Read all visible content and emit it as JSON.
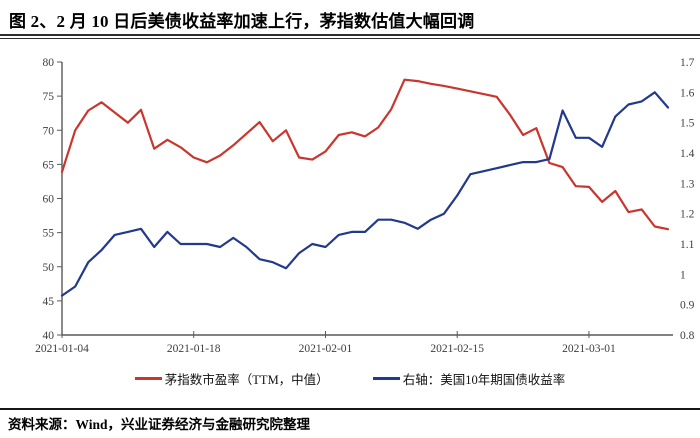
{
  "header": {
    "title": "图 2、2 月 10 日后美债收益率加速上行，茅指数估值大幅回调"
  },
  "chart_data": {
    "type": "line",
    "title": "图 2、2 月 10 日后美债收益率加速上行，茅指数估值大幅回调",
    "grid": false,
    "legend_position": "bottom",
    "x": [
      "2021-01-04",
      "2021-01-05",
      "2021-01-06",
      "2021-01-07",
      "2021-01-08",
      "2021-01-11",
      "2021-01-12",
      "2021-01-13",
      "2021-01-14",
      "2021-01-15",
      "2021-01-18",
      "2021-01-19",
      "2021-01-20",
      "2021-01-21",
      "2021-01-22",
      "2021-01-25",
      "2021-01-26",
      "2021-01-27",
      "2021-01-28",
      "2021-01-29",
      "2021-02-01",
      "2021-02-02",
      "2021-02-03",
      "2021-02-04",
      "2021-02-05",
      "2021-02-08",
      "2021-02-09",
      "2021-02-10",
      "2021-02-11",
      "2021-02-12",
      "2021-02-15",
      "2021-02-16",
      "2021-02-17",
      "2021-02-18",
      "2021-02-19",
      "2021-02-22",
      "2021-02-23",
      "2021-02-24",
      "2021-02-25",
      "2021-02-26",
      "2021-03-01",
      "2021-03-02",
      "2021-03-03",
      "2021-03-04",
      "2021-03-05",
      "2021-03-08",
      "2021-03-09"
    ],
    "x_ticks": [
      "2021-01-04",
      "2021-01-18",
      "2021-02-01",
      "2021-02-15",
      "2021-03-01"
    ],
    "left_axis": {
      "min": 40,
      "max": 80,
      "ticks": [
        40,
        45,
        50,
        55,
        60,
        65,
        70,
        75,
        80
      ]
    },
    "right_axis": {
      "min": 0.8,
      "max": 1.7,
      "ticks": [
        0.8,
        0.9,
        1,
        1.1,
        1.2,
        1.3,
        1.4,
        1.5,
        1.6,
        1.7
      ]
    },
    "series": [
      {
        "name": "茅指数市盈率（TTM，中值）",
        "axis": "left",
        "color": "#c9362e",
        "values": [
          63.9,
          70.0,
          72.9,
          74.1,
          72.6,
          71.1,
          73.0,
          67.3,
          68.6,
          67.5,
          66.0,
          65.3,
          66.3,
          67.8,
          69.5,
          71.2,
          68.4,
          70.0,
          66.0,
          65.7,
          66.9,
          69.3,
          69.7,
          69.1,
          70.4,
          73.1,
          77.4,
          77.2,
          76.8,
          76.5,
          76.1,
          75.7,
          75.3,
          74.9,
          72.3,
          69.3,
          70.3,
          65.2,
          64.6,
          61.8,
          61.7,
          59.5,
          61.1,
          58.0,
          58.4,
          55.9,
          55.5
        ]
      },
      {
        "name": "右轴：美国10年期国债收益率",
        "axis": "right",
        "color": "#22398c",
        "values": [
          0.93,
          0.96,
          1.04,
          1.08,
          1.13,
          1.14,
          1.15,
          1.09,
          1.14,
          1.1,
          1.1,
          1.1,
          1.09,
          1.12,
          1.09,
          1.05,
          1.04,
          1.02,
          1.07,
          1.1,
          1.09,
          1.13,
          1.14,
          1.14,
          1.18,
          1.18,
          1.17,
          1.15,
          1.18,
          1.2,
          1.26,
          1.33,
          1.34,
          1.35,
          1.36,
          1.37,
          1.37,
          1.38,
          1.54,
          1.45,
          1.45,
          1.42,
          1.52,
          1.56,
          1.57,
          1.6,
          1.55
        ]
      }
    ]
  },
  "legend": {
    "item1": "茅指数市盈率（TTM，中值）",
    "item2": "右轴：美国10年期国债收益率"
  },
  "footer": {
    "source": "资料来源：Wind，兴业证券经济与金融研究院整理"
  },
  "colors": {
    "red_line": "#c9362e",
    "blue_line": "#22398c",
    "rule_dark": "#2f2f2f",
    "tick_text": "#3d3d3d"
  }
}
